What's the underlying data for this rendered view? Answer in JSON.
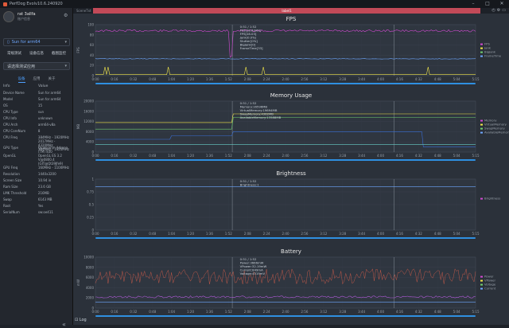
{
  "window": {
    "title": "PerfDog Evolv10.6.240920"
  },
  "user": {
    "name": "rat 3allfa",
    "subtitle": "账户信息"
  },
  "device": {
    "name": "Sun for arm64"
  },
  "buttons": [
    "常规测试",
    "设备信息",
    "截图监控"
  ],
  "app_select": {
    "placeholder": "请选择测试应用"
  },
  "tabs": [
    "设备",
    "应用",
    "关于"
  ],
  "info_header": {
    "key": "Info",
    "value": "Value"
  },
  "info_rows": [
    {
      "k": "Device Name",
      "v": "Sun for arm64"
    },
    {
      "k": "Model",
      "v": "Sun for arm64"
    },
    {
      "k": "OS",
      "v": "15"
    },
    {
      "k": "CPU Type",
      "v": "sun"
    },
    {
      "k": "CPU Info",
      "v": "unknown"
    },
    {
      "k": "CPU Arch",
      "v": "arm64-v8a"
    },
    {
      "k": "CPU CoreNum",
      "v": "8"
    },
    {
      "k": "CPU Freq",
      "v": "384MHz - 1920MHz\n2017MHz - 4320MHz\n384MHz - 1920MHz"
    },
    {
      "k": "GPU Type",
      "v": "Qualcomm Adreno\n(TM) 830"
    },
    {
      "k": "OpenGL",
      "v": "OpenGL ES 3.2\nV@0800.4\n(GIT@Qt39Jfe9)"
    },
    {
      "k": "GPU Freq",
      "v": "160MHz - 1100MHz"
    },
    {
      "k": "Resolution",
      "v": "1440x3200"
    },
    {
      "k": "Screen Size",
      "v": "10.94 in"
    },
    {
      "k": "Ram Size",
      "v": "23.6 GB"
    },
    {
      "k": "LMK Threshold",
      "v": "216MB"
    },
    {
      "k": "Swap",
      "v": "6143 MB"
    },
    {
      "k": "Root",
      "v": "Yes"
    },
    {
      "k": "SerialNum",
      "v": "sw:oe411"
    }
  ],
  "scene": {
    "name": "SceneTxt",
    "label": "label1"
  },
  "log_label": "Log",
  "time_ticks": [
    "0:00",
    "0:16",
    "0:32",
    "0:48",
    "1:04",
    "1:20",
    "1:36",
    "1:52",
    "2:08",
    "2:24",
    "2:40",
    "2:56",
    "3:12",
    "3:28",
    "3:44",
    "4:00",
    "4:16",
    "4:32",
    "4:48",
    "5:04",
    "5:15"
  ],
  "colors": {
    "accent": "#4ea1ff",
    "label_bar": "#c24a58",
    "fps": "#d24ad2",
    "jank": "#f2e64a",
    "memory": "#3a6fd8",
    "battery": "#e0604a"
  },
  "charts": [
    {
      "title": "FPS",
      "ylabel": "FPS",
      "yticks": [
        "100",
        "80",
        "60",
        "40",
        "20",
        "0"
      ],
      "readout": [
        "0:51 / 1:52",
        "FPS(28.63/63)",
        "FPS[28.03]",
        "Jank(0.0%)",
        "Stutter[0%]",
        "BigJank[0]",
        "FrameTime[33]"
      ],
      "legend": [
        "FPS",
        "Jank",
        "BigJank",
        "FrameTime"
      ]
    },
    {
      "title": "Memory Usage",
      "ylabel": "MB",
      "yticks": [
        "20000",
        "16000",
        "12000",
        "8000",
        "4000",
        "0"
      ],
      "readout": [
        "0:51 / 1:52",
        "Memory:16596MB",
        "VirtualMemory:19694MB",
        "SwapMemory:4362MB",
        "AvailableMemory:13588MB"
      ],
      "legend": [
        "Memory",
        "VirtualMemory",
        "SwapMemory",
        "AvailableMemory"
      ]
    },
    {
      "title": "Brightness",
      "ylabel": "",
      "yticks": [
        "1",
        "0.75",
        "0.5",
        "0.25",
        "0"
      ],
      "readout": [
        "0:51 / 1:52",
        "Brightness:1"
      ],
      "legend": [
        "Brightness"
      ]
    },
    {
      "title": "Battery",
      "ylabel": "mW",
      "yticks": [
        "10000",
        "8000",
        "6000",
        "4000",
        "2000",
        "0"
      ],
      "readout": [
        "0:51 / 1:52",
        "Power:3666mW",
        "VPower:32.19mW",
        "Current:849mA",
        "Voltage:4319mV"
      ],
      "legend": [
        "Power",
        "VPower",
        "Voltage",
        "Current"
      ]
    }
  ]
}
